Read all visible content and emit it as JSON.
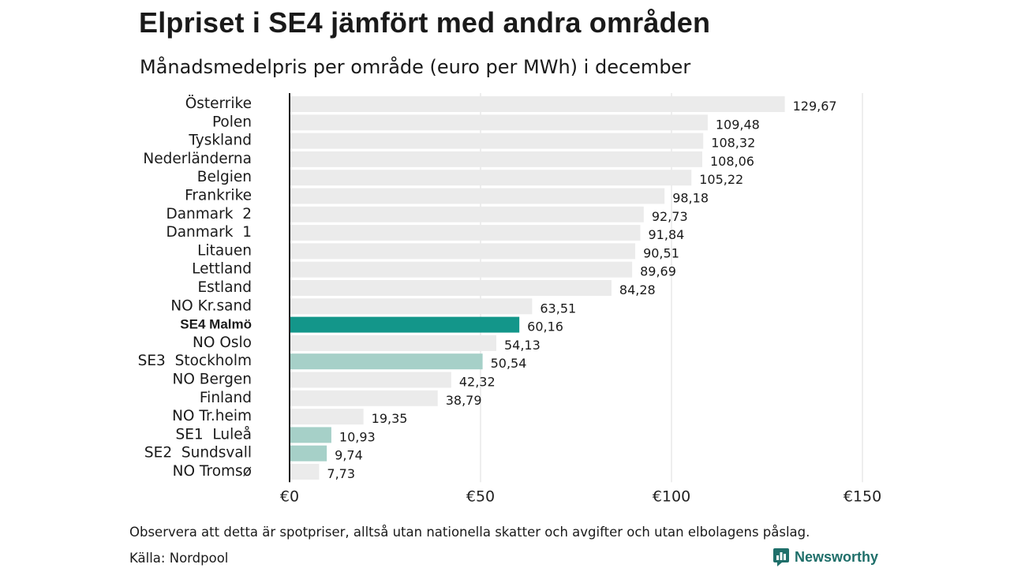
{
  "title": "Elpriset i SE4 jämfört med andra områden",
  "subtitle": "Månadsmedelpris per område (euro per MWh) i december",
  "note": "Observera att detta är spotpriser, alltså utan nationella skatter och avgifter och utan elbolagens påslag.",
  "source": "Källa: Nordpool",
  "brand": "Newsworthy",
  "colors": {
    "default": "#ebebeb",
    "highlight": "#13968a",
    "sweden": "#a6d0c8",
    "axis": "#222222",
    "grid": "#dddddd",
    "brand": "#1f6f6a"
  },
  "chart_data": {
    "type": "bar",
    "orientation": "horizontal",
    "categories": [
      "Österrike",
      "Polen",
      "Tyskland",
      "Nederländerna",
      "Belgien",
      "Frankrike",
      "Danmark  2",
      "Danmark  1",
      "Litauen",
      "Lettland",
      "Estland",
      "NO Kr.sand",
      "SE4 Malmö",
      "NO Oslo",
      "SE3  Stockholm",
      "NO Bergen",
      "Finland",
      "NO Tr.heim",
      "SE1  Luleå",
      "SE2  Sundsvall",
      "NO Tromsø"
    ],
    "values": [
      129.67,
      109.48,
      108.32,
      108.06,
      105.22,
      98.18,
      92.73,
      91.84,
      90.51,
      89.69,
      84.28,
      63.51,
      60.16,
      54.13,
      50.54,
      42.32,
      38.79,
      19.35,
      10.93,
      9.74,
      7.73
    ],
    "value_labels": [
      "129,67",
      "109,48",
      "108,32",
      "108,06",
      "105,22",
      "98,18",
      "92,73",
      "91,84",
      "90,51",
      "89,69",
      "84,28",
      "63,51",
      "60,16",
      "54,13",
      "50,54",
      "42,32",
      "38,79",
      "19,35",
      "10,93",
      "9,74",
      "7,73"
    ],
    "highlight": [
      "default",
      "default",
      "default",
      "default",
      "default",
      "default",
      "default",
      "default",
      "default",
      "default",
      "default",
      "default",
      "highlight",
      "default",
      "sweden",
      "default",
      "default",
      "default",
      "sweden",
      "sweden",
      "default"
    ],
    "xticks": [
      0,
      50,
      100,
      150
    ],
    "xtick_labels": [
      "€0",
      "€50",
      "€100",
      "€150"
    ],
    "xlim": [
      0,
      150
    ],
    "grid": true
  }
}
